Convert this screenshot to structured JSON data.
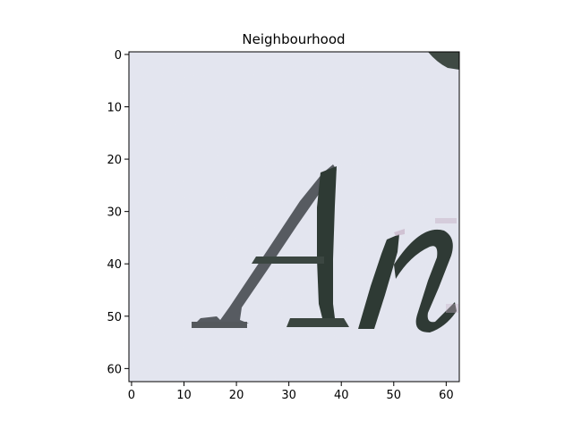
{
  "title": "Neighbourhood",
  "image": {
    "description_rendered": "scanned italic serif letters",
    "glyph_text": "An",
    "pixel_grid_size": [
      63,
      63
    ],
    "colors": {
      "paper": "#e3e5ef",
      "paper_shade": "#d9dce8",
      "ink": "#2e3a34",
      "ink_edge": "#5b5260",
      "pink_tint": "#c7b3c8",
      "corner_mark": "#3f4a44"
    }
  },
  "axes": {
    "x_ticks": [
      "0",
      "10",
      "20",
      "30",
      "40",
      "50",
      "60"
    ],
    "y_ticks": [
      "0",
      "10",
      "20",
      "30",
      "40",
      "50",
      "60"
    ],
    "xlim": [
      -0.5,
      62.5
    ],
    "ylim_inverted": [
      62.5,
      -0.5
    ]
  },
  "colors": {
    "axis": "#000000",
    "background": "#ffffff"
  }
}
